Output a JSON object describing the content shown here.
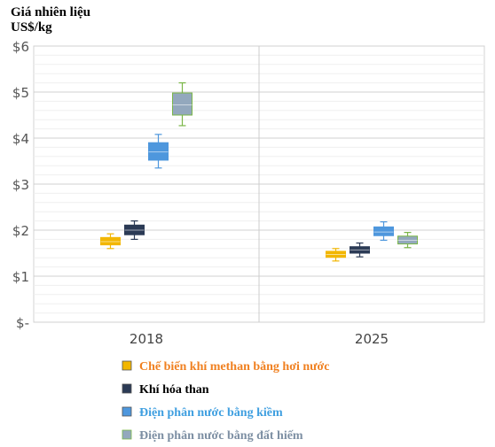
{
  "chart_data": {
    "type": "box",
    "ylabel": [
      "Giá nhiên liệu",
      "US$/kg"
    ],
    "y_tick_labels": [
      "$-",
      "$1",
      "$2",
      "$3",
      "$4",
      "$5",
      "$6"
    ],
    "ylim": [
      0,
      6
    ],
    "grid": true,
    "legend_position": "bottom",
    "categories": [
      "2018",
      "2025"
    ],
    "series": [
      {
        "name": "Chế biến khí methan bằng hơi nước",
        "color": "#f2b600",
        "label_color": "#f08020",
        "boxes": [
          {
            "min": 1.6,
            "q1": 1.68,
            "median": 1.75,
            "q3": 1.84,
            "max": 1.92
          },
          {
            "min": 1.33,
            "q1": 1.41,
            "median": 1.47,
            "q3": 1.54,
            "max": 1.6
          }
        ]
      },
      {
        "name": "Khí hóa than",
        "color": "#2b3a55",
        "label_color": "#000000",
        "boxes": [
          {
            "min": 1.8,
            "q1": 1.9,
            "median": 2.0,
            "q3": 2.11,
            "max": 2.2
          },
          {
            "min": 1.42,
            "q1": 1.5,
            "median": 1.57,
            "q3": 1.64,
            "max": 1.72
          }
        ]
      },
      {
        "name": "Điện phân nước bằng kiềm",
        "color": "#4e97dd",
        "label_color": "#3f9fe0",
        "boxes": [
          {
            "min": 3.35,
            "q1": 3.52,
            "median": 3.7,
            "q3": 3.9,
            "max": 4.08
          },
          {
            "min": 1.78,
            "q1": 1.88,
            "median": 1.96,
            "q3": 2.07,
            "max": 2.18
          }
        ]
      },
      {
        "name": "Điện phân nước bằng đất hiếm",
        "color": "#93a8bd",
        "label_color": "#7d8fa3",
        "whisker_color": "#7ab648",
        "boxes": [
          {
            "min": 4.27,
            "q1": 4.5,
            "median": 4.72,
            "q3": 4.98,
            "max": 5.2
          },
          {
            "min": 1.62,
            "q1": 1.7,
            "median": 1.78,
            "q3": 1.87,
            "max": 1.95
          }
        ]
      }
    ]
  }
}
